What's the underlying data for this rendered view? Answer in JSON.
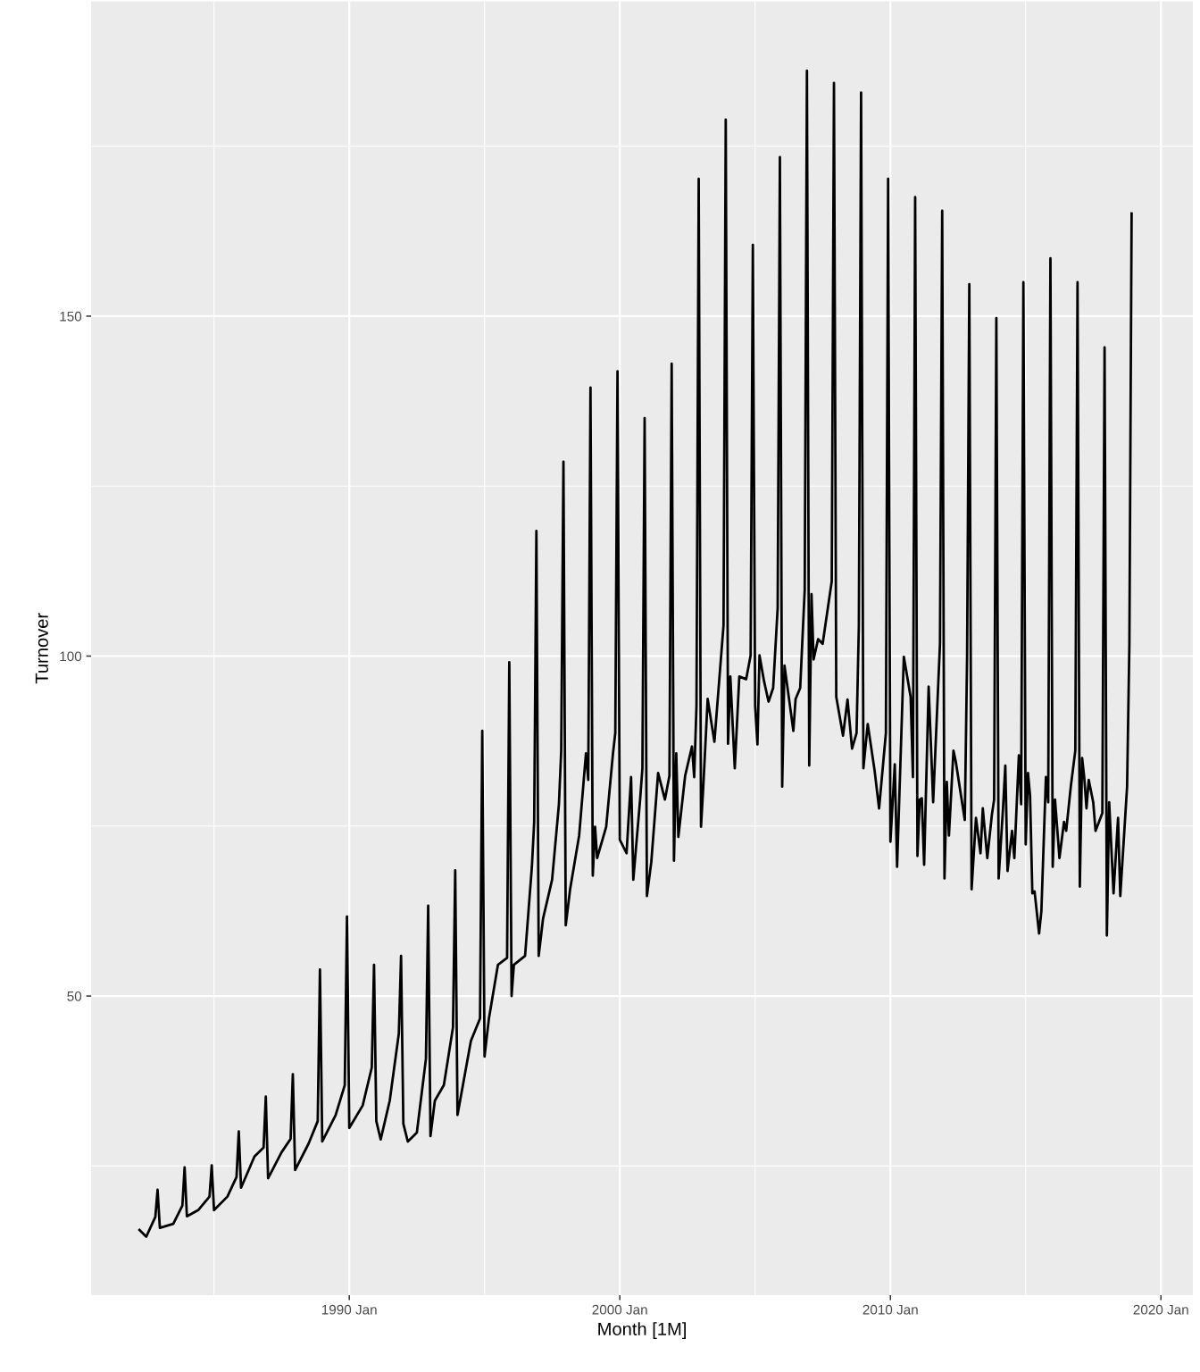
{
  "chart_data": {
    "type": "line",
    "xlabel": "Month [1M]",
    "ylabel": "Turnover",
    "grid": true,
    "xlim": [
      "1980-06-18",
      "2021-03-06"
    ],
    "xticks": [
      {
        "value": "1985-01",
        "label": null
      },
      {
        "value": "1990-01",
        "label": "1990 Jan"
      },
      {
        "value": "1995-01",
        "label": null
      },
      {
        "value": "2000-01",
        "label": "2000 Jan"
      },
      {
        "value": "2005-01",
        "label": null
      },
      {
        "value": "2010-01",
        "label": "2010 Jan"
      },
      {
        "value": "2015-01",
        "label": null
      },
      {
        "value": "2020-01",
        "label": "2020 Jan"
      }
    ],
    "ylim": [
      6.0,
      196.3
    ],
    "yticks": [
      {
        "value": 25,
        "label": null
      },
      50,
      {
        "value": 75,
        "label": null
      },
      100,
      {
        "value": 125,
        "label": null
      },
      150,
      {
        "value": 175,
        "label": null
      }
    ],
    "series": [
      {
        "color": "#000000",
        "line_style": "solid",
        "marker": "none",
        "x": [
          "1982-04",
          "1982-07",
          "1982-11",
          "1982-12",
          "1983-01",
          "1983-07",
          "1983-11",
          "1983-12",
          "1984-01",
          "1984-06",
          "1984-11",
          "1984-12",
          "1985-01",
          "1985-07",
          "1985-11",
          "1985-12",
          "1986-01",
          "1986-07",
          "1986-11",
          "1986-12",
          "1987-01",
          "1987-07",
          "1987-11",
          "1987-12",
          "1988-01",
          "1988-07",
          "1988-11",
          "1988-12",
          "1989-01",
          "1989-07",
          "1989-11",
          "1989-12",
          "1990-01",
          "1990-07",
          "1990-11",
          "1990-12",
          "1991-01",
          "1991-03",
          "1991-07",
          "1991-11",
          "1991-12",
          "1992-01",
          "1992-03",
          "1992-07",
          "1992-11",
          "1992-12",
          "1993-01",
          "1993-03",
          "1993-07",
          "1993-11",
          "1993-12",
          "1994-01",
          "1994-07",
          "1994-11",
          "1994-12",
          "1995-01",
          "1995-03",
          "1995-07",
          "1995-11",
          "1995-12",
          "1996-01",
          "1996-02",
          "1996-07",
          "1996-10",
          "1996-11",
          "1996-12",
          "1997-01",
          "1997-03",
          "1997-07",
          "1997-10",
          "1997-11",
          "1997-12",
          "1998-01",
          "1998-03",
          "1998-07",
          "1998-10",
          "1998-11",
          "1998-12",
          "1999-01",
          "1999-02",
          "1999-03",
          "1999-07",
          "1999-10",
          "1999-11",
          "1999-12",
          "2000-01",
          "2000-04",
          "2000-06",
          "2000-07",
          "2000-10",
          "2000-11",
          "2000-12",
          "2001-01",
          "2001-03",
          "2001-06",
          "2001-09",
          "2001-11",
          "2001-12",
          "2002-01",
          "2002-02",
          "2002-03",
          "2002-06",
          "2002-09",
          "2002-10",
          "2002-11",
          "2002-12",
          "2003-01",
          "2003-02",
          "2003-04",
          "2003-07",
          "2003-11",
          "2003-12",
          "2004-01",
          "2004-02",
          "2004-04",
          "2004-06",
          "2004-09",
          "2004-11",
          "2004-12",
          "2005-01",
          "2005-02",
          "2005-03",
          "2005-05",
          "2005-07",
          "2005-09",
          "2005-11",
          "2005-12",
          "2006-01",
          "2006-02",
          "2006-06",
          "2006-07",
          "2006-09",
          "2006-11",
          "2006-12",
          "2007-01",
          "2007-02",
          "2007-03",
          "2007-05",
          "2007-07",
          "2007-11",
          "2007-12",
          "2008-01",
          "2008-04",
          "2008-06",
          "2008-08",
          "2008-10",
          "2008-11",
          "2008-12",
          "2009-01",
          "2009-03",
          "2009-06",
          "2009-08",
          "2009-11",
          "2009-12",
          "2010-01",
          "2010-03",
          "2010-04",
          "2010-07",
          "2010-10",
          "2010-11",
          "2010-12",
          "2011-01",
          "2011-02",
          "2011-03",
          "2011-04",
          "2011-06",
          "2011-08",
          "2011-11",
          "2011-12",
          "2012-01",
          "2012-02",
          "2012-03",
          "2012-05",
          "2012-06",
          "2012-10",
          "2012-11",
          "2012-12",
          "2013-01",
          "2013-03",
          "2013-05",
          "2013-06",
          "2013-08",
          "2013-10",
          "2013-11",
          "2013-12",
          "2014-01",
          "2014-03",
          "2014-04",
          "2014-05",
          "2014-07",
          "2014-08",
          "2014-10",
          "2014-11",
          "2014-12",
          "2015-01",
          "2015-02",
          "2015-03",
          "2015-04",
          "2015-05",
          "2015-07",
          "2015-08",
          "2015-10",
          "2015-11",
          "2015-12",
          "2016-01",
          "2016-02",
          "2016-04",
          "2016-06",
          "2016-07",
          "2016-09",
          "2016-11",
          "2016-12",
          "2017-01",
          "2017-02",
          "2017-03",
          "2017-04",
          "2017-05",
          "2017-07",
          "2017-08",
          "2017-11",
          "2017-12",
          "2018-01",
          "2018-02",
          "2018-04",
          "2018-06",
          "2018-07",
          "2018-10",
          "2018-11",
          "2018-12"
        ],
        "values": [
          15.6,
          14.6,
          17.5,
          21.5,
          15.9,
          16.5,
          19.2,
          24.8,
          17.6,
          18.5,
          20.5,
          25.1,
          18.5,
          20.5,
          23.4,
          30.1,
          21.8,
          26.4,
          27.7,
          35.2,
          23.2,
          27.0,
          29.0,
          38.5,
          24.4,
          28.3,
          31.6,
          53.9,
          28.6,
          32.5,
          36.9,
          61.7,
          30.6,
          33.9,
          39.5,
          54.6,
          31.6,
          28.9,
          34.6,
          44.5,
          55.9,
          31.2,
          28.6,
          29.9,
          40.8,
          63.3,
          29.4,
          34.6,
          36.9,
          45.4,
          68.5,
          32.5,
          43.4,
          46.7,
          89.0,
          41.1,
          46.7,
          54.6,
          55.6,
          99.1,
          50.0,
          54.6,
          55.9,
          69.0,
          75.6,
          118.4,
          55.9,
          61.4,
          67.1,
          78.2,
          86.1,
          128.6,
          60.4,
          65.7,
          73.6,
          85.7,
          81.8,
          139.5,
          67.7,
          74.9,
          70.3,
          74.9,
          85.7,
          88.7,
          141.9,
          73.0,
          71.0,
          82.2,
          67.1,
          78.9,
          83.5,
          135.0,
          64.7,
          69.7,
          82.8,
          78.9,
          82.4,
          143.0,
          69.9,
          85.7,
          73.4,
          82.4,
          86.7,
          82.2,
          92.7,
          170.2,
          74.9,
          80.8,
          93.7,
          87.4,
          104.5,
          178.9,
          87.1,
          97.0,
          83.5,
          97.0,
          96.6,
          100.1,
          160.5,
          92.7,
          87.0,
          100.1,
          96.3,
          93.3,
          95.3,
          107.1,
          173.4,
          80.8,
          98.6,
          89.0,
          93.7,
          95.3,
          109.7,
          186.1,
          83.9,
          109.1,
          99.5,
          102.5,
          101.8,
          111.0,
          184.3,
          94.0,
          88.3,
          93.6,
          86.4,
          88.7,
          104.5,
          182.9,
          83.5,
          90.0,
          83.2,
          77.6,
          88.7,
          170.2,
          72.7,
          84.1,
          69.0,
          99.9,
          94.0,
          82.2,
          167.5,
          70.6,
          78.9,
          79.1,
          69.3,
          95.5,
          78.5,
          101.8,
          165.5,
          67.3,
          81.5,
          73.6,
          86.1,
          84.5,
          75.9,
          99.9,
          154.7,
          65.7,
          76.2,
          71.0,
          77.6,
          70.3,
          76.6,
          78.9,
          149.7,
          67.3,
          77.6,
          83.9,
          68.4,
          74.3,
          70.3,
          85.4,
          78.2,
          155.0,
          72.3,
          82.8,
          79.5,
          65.1,
          65.4,
          59.2,
          62.5,
          82.2,
          78.5,
          158.5,
          69.0,
          78.9,
          70.3,
          75.6,
          74.3,
          80.8,
          86.1,
          155.0,
          66.1,
          85.0,
          82.2,
          77.6,
          81.8,
          78.5,
          74.3,
          76.9,
          145.4,
          58.9,
          78.5,
          65.1,
          76.2,
          64.7,
          80.8,
          101.8,
          165.1
        ]
      }
    ]
  }
}
